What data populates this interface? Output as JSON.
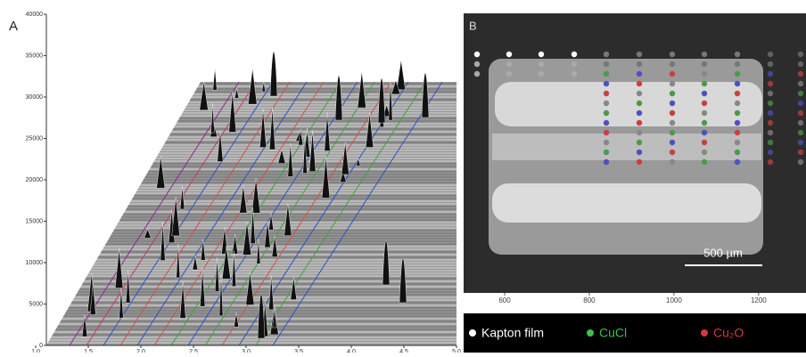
{
  "chart_data": [
    {
      "type": "waterfall",
      "panel": "A",
      "ylim": [
        0,
        40000
      ],
      "yticks": [
        0,
        5000,
        10000,
        15000,
        20000,
        25000,
        30000,
        35000,
        40000
      ],
      "xlim": [
        1,
        5
      ],
      "xticks": [
        {
          "value": 1,
          "label": "1.0"
        },
        {
          "value": 1.5,
          "label": "1.5"
        },
        {
          "value": 2,
          "label": "2.0"
        },
        {
          "value": 2.5,
          "label": "2.5"
        },
        {
          "value": 3,
          "label": "3.0"
        },
        {
          "value": 3.5,
          "label": "3.5"
        },
        {
          "value": 4,
          "label": "4.0"
        },
        {
          "value": 4.5,
          "label": "4.5"
        },
        {
          "value": 5,
          "label": "5.0"
        }
      ]
    },
    {
      "type": "image",
      "panel": "B",
      "xlim": [
        503,
        1312
      ],
      "xticks": [
        600,
        800,
        1000,
        1200
      ],
      "scale_bar": "500 µm",
      "legend": [
        {
          "name": "Kapton film",
          "color": "#ffffff"
        },
        {
          "name": "CuCl",
          "color": "#3cc04a"
        },
        {
          "name": "Cu₂O",
          "color": "#d23a3a"
        }
      ]
    }
  ]
}
